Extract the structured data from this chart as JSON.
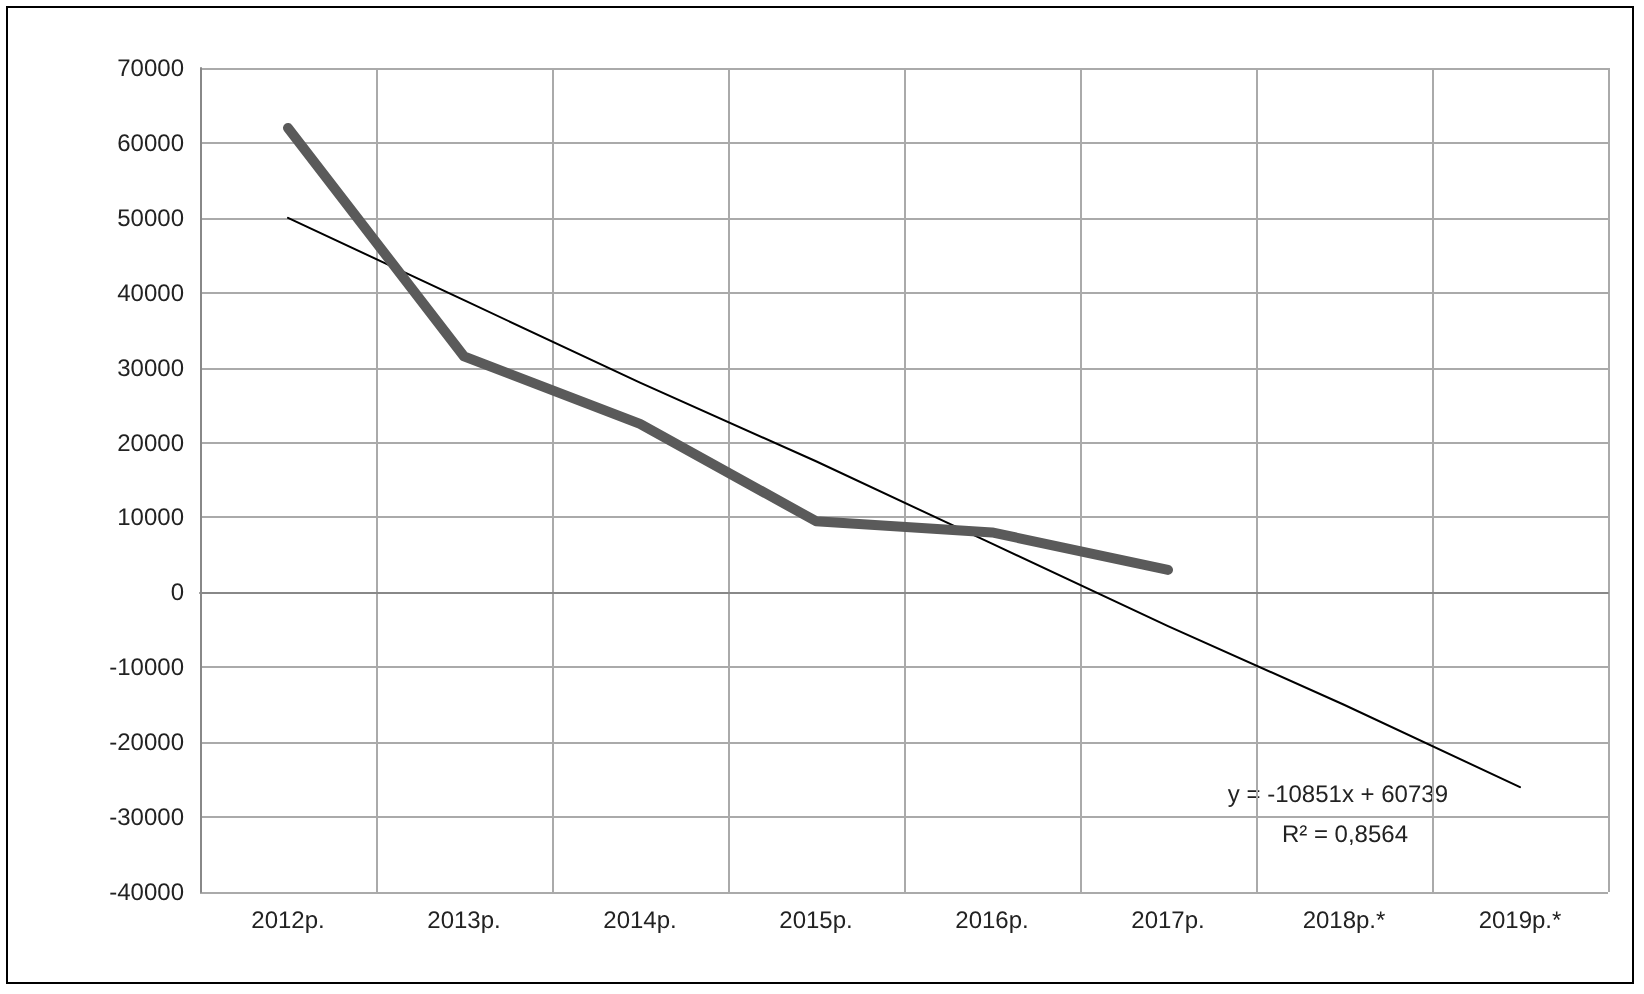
{
  "chart_data": {
    "type": "line",
    "categories": [
      "2012р.",
      "2013р.",
      "2014р.",
      "2015р.",
      "2016р.",
      "2017р.",
      "2018р.*",
      "2019р.*"
    ],
    "series": [
      {
        "color": "#5a5a5a",
        "values": [
          62000,
          31500,
          22500,
          9500,
          8000,
          3000,
          null,
          null
        ]
      },
      {
        "color": "#000000",
        "values": [
          50000,
          39000,
          28000,
          17500,
          6500,
          -4500,
          -15000,
          -26000
        ]
      }
    ],
    "ylim": [
      -40000,
      70000
    ],
    "yticks": [
      -40000,
      -30000,
      -20000,
      -10000,
      0,
      10000,
      20000,
      30000,
      40000,
      50000,
      60000,
      70000
    ],
    "grid": true,
    "marker": "none",
    "line_style": "solid",
    "annotations": [
      "y = -10851x + 60739",
      "R² = 0,8564"
    ]
  }
}
